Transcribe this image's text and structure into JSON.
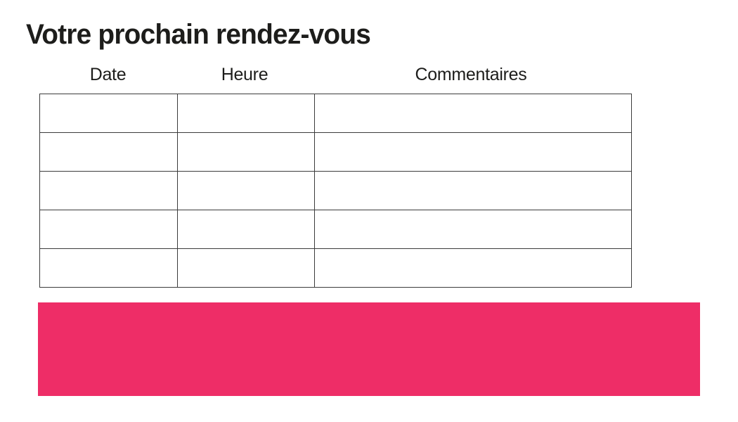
{
  "page": {
    "title": "Votre prochain rendez-vous"
  },
  "table": {
    "columns": [
      {
        "label": "Date"
      },
      {
        "label": "Heure"
      },
      {
        "label": "Commentaires"
      }
    ],
    "rows": [
      [
        "",
        "",
        ""
      ],
      [
        "",
        "",
        ""
      ],
      [
        "",
        "",
        ""
      ],
      [
        "",
        "",
        ""
      ],
      [
        "",
        "",
        ""
      ]
    ]
  },
  "banner": {
    "color": "#EE2D67"
  },
  "colors": {
    "accent": "#EE2D67",
    "table_border": "#3b3b3b",
    "text": "#1d1d1b",
    "background": "#ffffff"
  }
}
